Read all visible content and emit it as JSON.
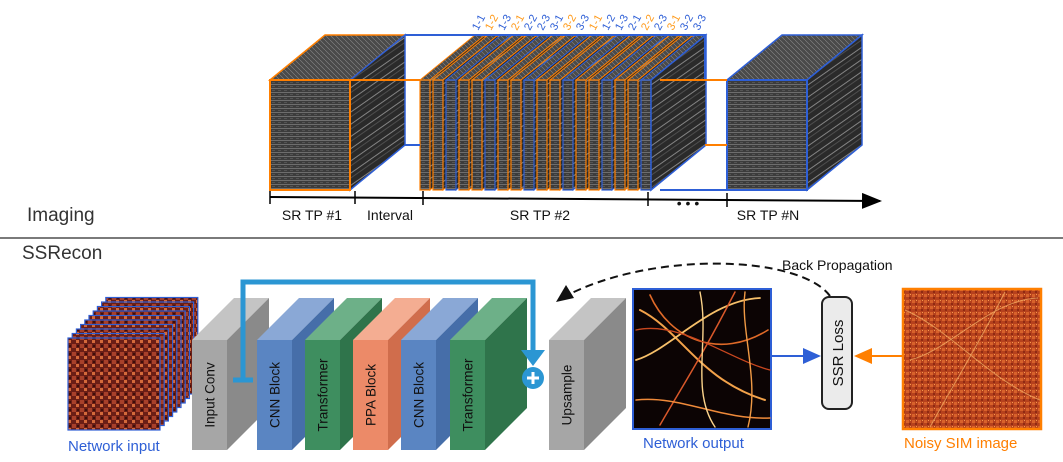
{
  "sections": {
    "imaging": "Imaging",
    "ssrecon": "SSRecon"
  },
  "timeline": {
    "segments": [
      "SR TP #1",
      "Interval",
      "SR TP #2",
      "SR TP #N"
    ],
    "ellipsis": "• • •"
  },
  "frame_labels": [
    "1-1",
    "1-2",
    "1-3",
    "2-1",
    "2-2",
    "2-3",
    "3-1",
    "3-2",
    "3-3",
    "1-1",
    "1-2",
    "1-3",
    "2-1",
    "2-2",
    "2-3",
    "3-1",
    "3-2",
    "3-3"
  ],
  "blocks": {
    "input_conv": "Input Conv",
    "cnn_block_1": "CNN Block",
    "transformer_1": "Transformer",
    "ppa_block": "PPA Block",
    "cnn_block_2": "CNN Block",
    "transformer_2": "Transformer",
    "upsample": "Upsample"
  },
  "captions": {
    "network_input": "Network input",
    "network_output": "Network output",
    "noisy_sim": "Noisy SIM image",
    "ssr_loss": "SSR Loss",
    "back_propagation": "Back Propagation"
  },
  "colors": {
    "orange": "#ff7f00",
    "blue": "#2e5fd6",
    "skip_blue": "#2b96d3",
    "gray_block": "#a6a6a6",
    "blue_block": "#5a85c2",
    "green_block": "#3e8e5f",
    "salmon_block": "#ec8a68"
  }
}
